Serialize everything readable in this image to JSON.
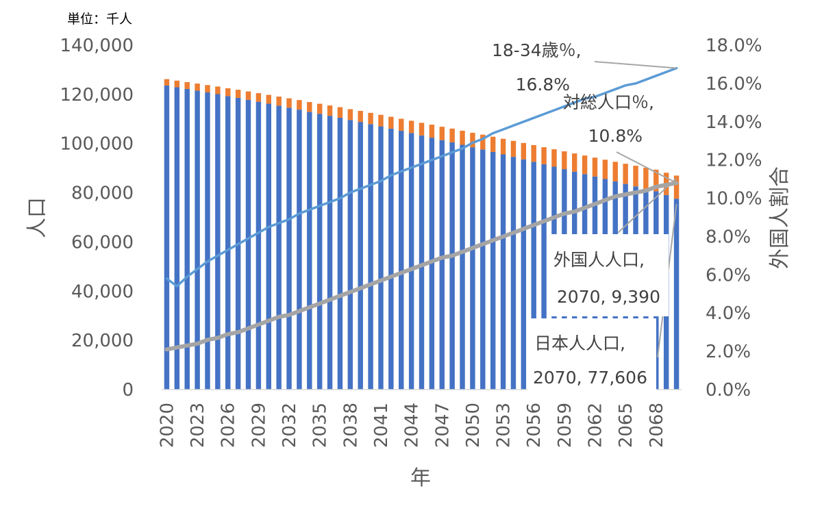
{
  "chart_data": {
    "type": "bar",
    "unit_label": "単位：千人",
    "xlabel": "年",
    "ylabel": "人口",
    "y2label": "外国人割合",
    "ylim": [
      0,
      140000
    ],
    "y2lim": [
      0,
      18
    ],
    "y_ticks": [
      "0",
      "20,000",
      "40,000",
      "60,000",
      "80,000",
      "100,000",
      "120,000",
      "140,000"
    ],
    "y2_ticks": [
      "0.0%",
      "2.0%",
      "4.0%",
      "6.0%",
      "8.0%",
      "10.0%",
      "12.0%",
      "14.0%",
      "16.0%",
      "18.0%"
    ],
    "x": [
      2020,
      2021,
      2022,
      2023,
      2024,
      2025,
      2026,
      2027,
      2028,
      2029,
      2030,
      2031,
      2032,
      2033,
      2034,
      2035,
      2036,
      2037,
      2038,
      2039,
      2040,
      2041,
      2042,
      2043,
      2044,
      2045,
      2046,
      2047,
      2048,
      2049,
      2050,
      2051,
      2052,
      2053,
      2054,
      2055,
      2056,
      2057,
      2058,
      2059,
      2060,
      2061,
      2062,
      2063,
      2064,
      2065,
      2066,
      2067,
      2068,
      2069,
      2070
    ],
    "x_tick_labels": [
      "2020",
      "2023",
      "2026",
      "2029",
      "2032",
      "2035",
      "2038",
      "2041",
      "2044",
      "2047",
      "2050",
      "2053",
      "2056",
      "2059",
      "2062",
      "2065",
      "2068"
    ],
    "colors": {
      "japanese": "#4472c4",
      "foreign": "#ed7d31",
      "age_line": "#5b9bd5",
      "ratio_line": "#a5a5a5"
    },
    "series": [
      {
        "name": "日本人人口",
        "stack": true,
        "axis": "left",
        "values": [
          123600,
          122900,
          122200,
          121500,
          120800,
          120100,
          119300,
          118600,
          117800,
          117000,
          116200,
          115400,
          114600,
          113800,
          112900,
          112100,
          111300,
          110500,
          109600,
          108800,
          107900,
          107000,
          106100,
          105200,
          104300,
          103300,
          102400,
          101400,
          100500,
          99500,
          98500,
          97600,
          96600,
          95600,
          94600,
          93600,
          92600,
          91600,
          90600,
          89600,
          88600,
          87600,
          86600,
          85600,
          84600,
          83600,
          82600,
          81600,
          80600,
          79100,
          77606
        ]
      },
      {
        "name": "外国人人口",
        "stack": true,
        "axis": "left",
        "values": [
          2600,
          2700,
          2800,
          2900,
          3000,
          3100,
          3200,
          3300,
          3400,
          3500,
          3600,
          3700,
          3800,
          3900,
          4000,
          4100,
          4200,
          4300,
          4400,
          4500,
          4600,
          4700,
          4800,
          4900,
          5000,
          5150,
          5300,
          5450,
          5600,
          5750,
          5900,
          6050,
          6200,
          6350,
          6500,
          6650,
          6800,
          6950,
          7100,
          7250,
          7400,
          7550,
          7700,
          7850,
          8000,
          8200,
          8400,
          8600,
          8800,
          9050,
          9390
        ]
      },
      {
        "name": "18-34歳％",
        "axis": "right",
        "values": [
          5.8,
          5.4,
          5.9,
          6.3,
          6.7,
          7.0,
          7.3,
          7.6,
          7.9,
          8.2,
          8.5,
          8.7,
          8.9,
          9.2,
          9.4,
          9.6,
          9.8,
          10.0,
          10.3,
          10.5,
          10.7,
          10.9,
          11.2,
          11.4,
          11.6,
          11.8,
          12.0,
          12.2,
          12.4,
          12.6,
          12.9,
          13.1,
          13.4,
          13.6,
          13.8,
          14.0,
          14.2,
          14.4,
          14.6,
          14.8,
          15.0,
          15.2,
          15.3,
          15.5,
          15.7,
          15.9,
          16.0,
          16.2,
          16.4,
          16.6,
          16.8
        ]
      },
      {
        "name": "対総人口％",
        "axis": "right",
        "values": [
          2.1,
          2.2,
          2.3,
          2.4,
          2.6,
          2.7,
          2.9,
          3.0,
          3.2,
          3.4,
          3.6,
          3.8,
          3.9,
          4.1,
          4.3,
          4.5,
          4.7,
          4.9,
          5.1,
          5.3,
          5.5,
          5.7,
          5.9,
          6.1,
          6.3,
          6.5,
          6.7,
          6.9,
          7.0,
          7.2,
          7.4,
          7.6,
          7.8,
          8.0,
          8.2,
          8.4,
          8.6,
          8.8,
          9.0,
          9.2,
          9.3,
          9.5,
          9.7,
          9.9,
          10.1,
          10.2,
          10.3,
          10.4,
          10.6,
          10.7,
          10.8
        ]
      }
    ],
    "annotations": [
      {
        "series": "18-34歳％",
        "line1": "18-34歳％,",
        "line2": "16.8%"
      },
      {
        "series": "対総人口％",
        "line1": "対総人口％,",
        "line2": "10.8%"
      },
      {
        "series": "外国人人口",
        "line1": "外国人人口,",
        "line2": "2070, 9,390"
      },
      {
        "series": "日本人人口",
        "line1": "日本人人口,",
        "line2": "2070, 77,606"
      }
    ],
    "grid": false,
    "legend": "none"
  }
}
